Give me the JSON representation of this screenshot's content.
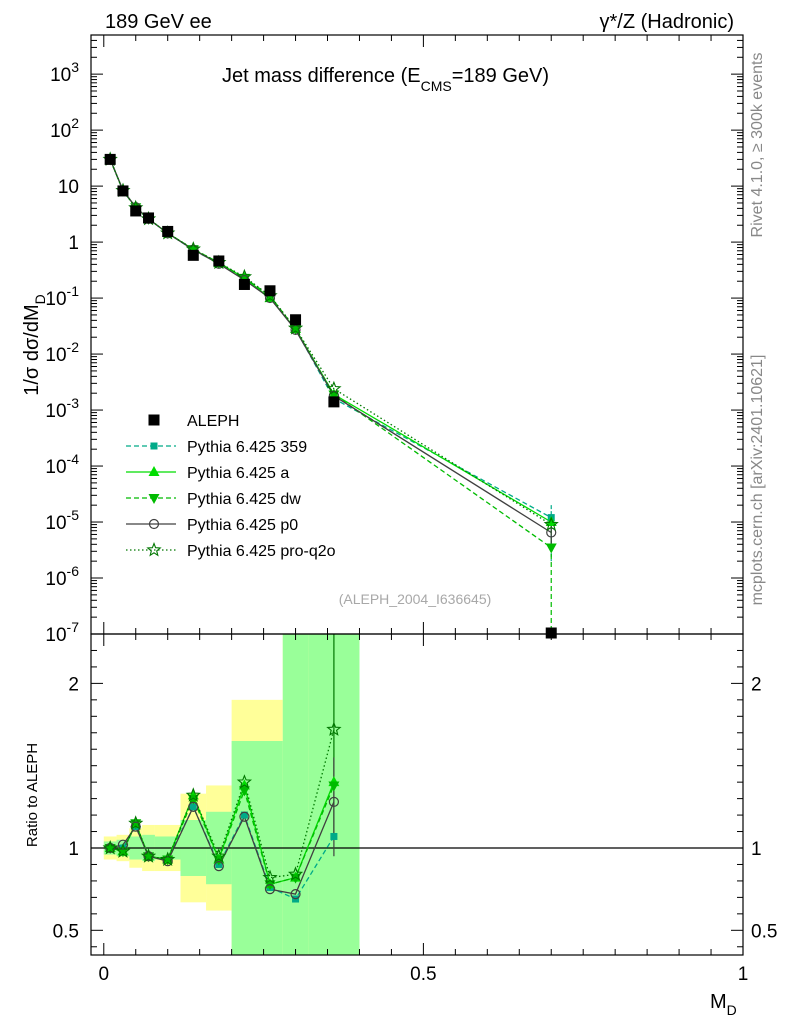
{
  "header": {
    "left_label": "189 GeV ee",
    "right_label": "γ*/Z (Hadronic)",
    "side_label_top": "Rivet 4.1.0, ≥ 300k events",
    "side_label_bottom": "mcplots.cern.ch [arXiv:2401.10621]"
  },
  "chart_data": [
    {
      "type": "scatter",
      "title": "Jet mass difference (E_CMS=189 GeV)",
      "title_main": "Jet mass difference (E",
      "title_sub": "CMS",
      "title_end": "=189 GeV)",
      "ylabel": "1/σ  dσ/dM_D",
      "ylabel_main": "1/σ  dσ/dM",
      "ylabel_sub": "D",
      "yscale": "log",
      "ylim": [
        1e-07,
        5000
      ],
      "xlim": [
        -0.02,
        1.0
      ],
      "y_tick_labels": [
        "10^-7",
        "10^-6",
        "10^-5",
        "10^-4",
        "10^-3",
        "10^-2",
        "10^-1",
        "1",
        "10",
        "10^2",
        "10^3"
      ],
      "watermark": "(ALEPH_2004_I636645)",
      "x": [
        0.01,
        0.03,
        0.05,
        0.07,
        0.1,
        0.14,
        0.18,
        0.22,
        0.26,
        0.3,
        0.36,
        0.7
      ],
      "series": [
        {
          "name": "ALEPH",
          "color": "#000000",
          "marker": "square",
          "line": "none",
          "values": [
            30,
            8.2,
            3.6,
            2.7,
            1.55,
            0.58,
            0.46,
            0.175,
            0.135,
            0.041,
            0.0014,
            1e-07
          ]
        },
        {
          "name": "Pythia 6.425 359",
          "color": "#00aa88",
          "marker": "square-small",
          "line": "dashed",
          "values": [
            30,
            8.3,
            4.1,
            2.6,
            1.45,
            0.72,
            0.42,
            0.22,
            0.1,
            0.028,
            0.0016,
            1.2e-05
          ]
        },
        {
          "name": "Pythia 6.425 a",
          "color": "#00dd00",
          "marker": "triangle-up",
          "line": "solid",
          "values": [
            30,
            8.3,
            4.2,
            2.6,
            1.45,
            0.74,
            0.42,
            0.23,
            0.1,
            0.028,
            0.0019,
            1e-05
          ]
        },
        {
          "name": "Pythia 6.425 dw",
          "color": "#00bb00",
          "marker": "triangle-down",
          "line": "dashed",
          "values": [
            30,
            8.3,
            4.2,
            2.6,
            1.45,
            0.75,
            0.43,
            0.23,
            0.11,
            0.028,
            0.0019,
            3.5e-06
          ]
        },
        {
          "name": "Pythia 6.425 p0",
          "color": "#404040",
          "marker": "circle-open",
          "line": "solid",
          "values": [
            30,
            8.4,
            4.2,
            2.6,
            1.43,
            0.73,
            0.41,
            0.21,
            0.1,
            0.027,
            0.0018,
            6.5e-06
          ]
        },
        {
          "name": "Pythia 6.425 pro-q2o",
          "color": "#007700",
          "marker": "star-open",
          "line": "dotted",
          "values": [
            30,
            8.3,
            4.1,
            2.6,
            1.45,
            0.75,
            0.43,
            0.24,
            0.11,
            0.029,
            0.0024,
            9e-06
          ]
        }
      ]
    },
    {
      "type": "line",
      "ylabel": "Ratio to ALEPH",
      "xlabel": "M_D",
      "xlabel_main": "M",
      "xlabel_sub": "D",
      "ylim": [
        0.35,
        2.3
      ],
      "xlim": [
        -0.02,
        1.0
      ],
      "y_ticks": [
        0.5,
        1,
        2
      ],
      "y_tick_labels": [
        "0.5",
        "1",
        "2"
      ],
      "x_ticks": [
        0,
        0.5,
        1
      ],
      "x_tick_labels": [
        "0",
        "0.5",
        "1"
      ],
      "bins": [
        {
          "lo": 0.0,
          "hi": 0.02,
          "stat": [
            0.96,
            1.04
          ],
          "tot": [
            0.93,
            1.07
          ]
        },
        {
          "lo": 0.02,
          "hi": 0.04,
          "stat": [
            0.95,
            1.05
          ],
          "tot": [
            0.92,
            1.08
          ]
        },
        {
          "lo": 0.04,
          "hi": 0.06,
          "stat": [
            0.93,
            1.07
          ],
          "tot": [
            0.88,
            1.12
          ]
        },
        {
          "lo": 0.06,
          "hi": 0.08,
          "stat": [
            0.92,
            1.08
          ],
          "tot": [
            0.86,
            1.14
          ]
        },
        {
          "lo": 0.08,
          "hi": 0.12,
          "stat": [
            0.93,
            1.07
          ],
          "tot": [
            0.86,
            1.14
          ]
        },
        {
          "lo": 0.12,
          "hi": 0.16,
          "stat": [
            0.83,
            1.17
          ],
          "tot": [
            0.67,
            1.33
          ]
        },
        {
          "lo": 0.16,
          "hi": 0.2,
          "stat": [
            0.78,
            1.22
          ],
          "tot": [
            0.62,
            1.38
          ]
        },
        {
          "lo": 0.2,
          "hi": 0.28,
          "stat": [
            0.35,
            1.65
          ],
          "tot": [
            0.35,
            1.9
          ]
        },
        {
          "lo": 0.28,
          "hi": 0.32,
          "stat": [
            0.35,
            2.3
          ],
          "tot": [
            0.35,
            2.3
          ]
        },
        {
          "lo": 0.32,
          "hi": 0.4,
          "stat": [
            0.35,
            2.3
          ],
          "tot": [
            0.35,
            2.3
          ]
        }
      ],
      "x": [
        0.01,
        0.03,
        0.05,
        0.07,
        0.1,
        0.14,
        0.18,
        0.22,
        0.26,
        0.3,
        0.36
      ],
      "series": [
        {
          "name": "Pythia 6.425 359",
          "color": "#00aa88",
          "marker": "square-small",
          "line": "dashed",
          "values": [
            1.0,
            1.0,
            1.13,
            0.95,
            0.93,
            1.25,
            0.9,
            1.2,
            0.76,
            0.69,
            1.07
          ]
        },
        {
          "name": "Pythia 6.425 a",
          "color": "#00dd00",
          "marker": "triangle-up",
          "line": "solid",
          "values": [
            1.0,
            0.98,
            1.15,
            0.95,
            0.93,
            1.32,
            0.93,
            1.38,
            0.78,
            0.82,
            1.4
          ]
        },
        {
          "name": "Pythia 6.425 dw",
          "color": "#00bb00",
          "marker": "triangle-down",
          "line": "dashed",
          "values": [
            1.0,
            0.98,
            1.15,
            0.95,
            0.93,
            1.3,
            0.93,
            1.35,
            0.78,
            0.82,
            1.38
          ]
        },
        {
          "name": "Pythia 6.425 p0",
          "color": "#404040",
          "marker": "circle-open",
          "line": "solid",
          "values": [
            1.0,
            1.02,
            1.13,
            0.95,
            0.92,
            1.25,
            0.89,
            1.19,
            0.75,
            0.72,
            1.28
          ]
        },
        {
          "name": "Pythia 6.425 pro-q2o",
          "color": "#007700",
          "marker": "star-open",
          "line": "dotted",
          "values": [
            1.0,
            0.98,
            1.15,
            0.95,
            0.93,
            1.32,
            0.95,
            1.4,
            0.82,
            0.84,
            1.72
          ]
        }
      ]
    }
  ]
}
